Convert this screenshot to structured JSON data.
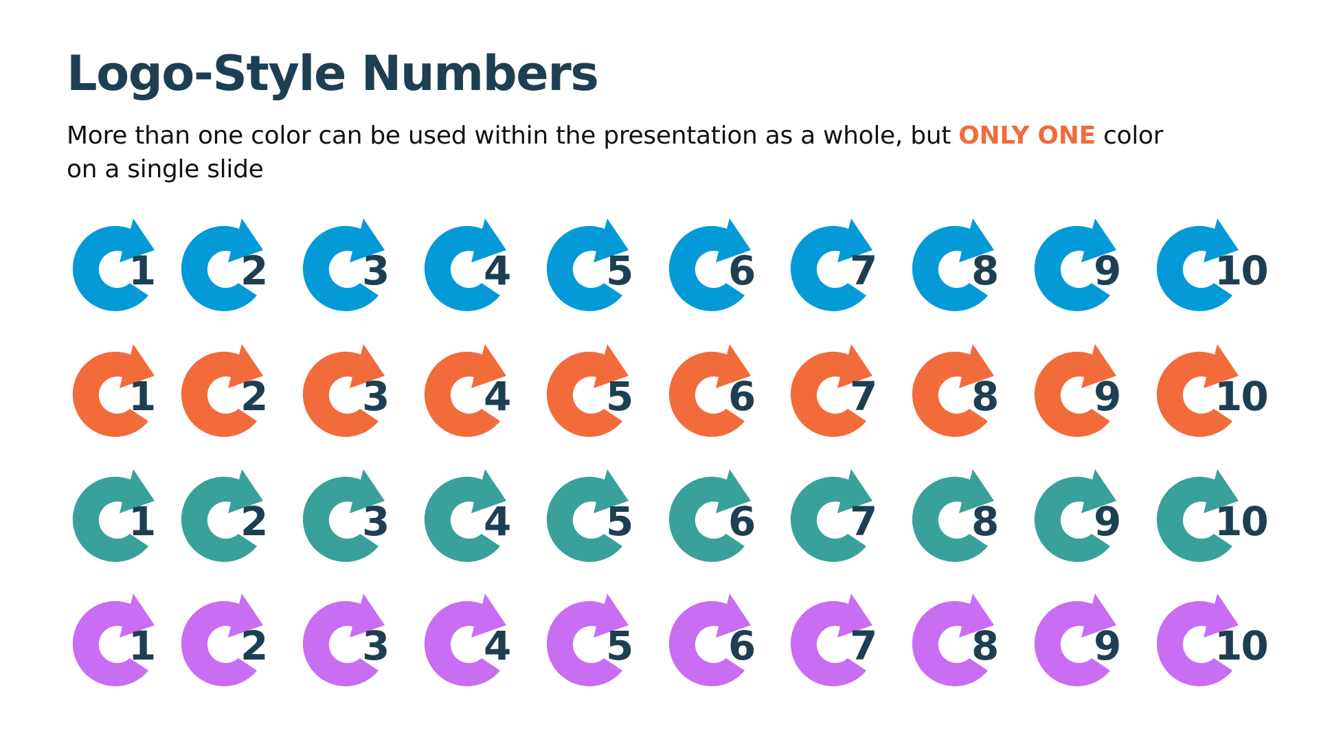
{
  "title": "Logo-Style Numbers",
  "subtitle": {
    "before": "More than one color can be used within the presentation as a whole, but ",
    "highlight": "ONLY ONE",
    "after": " color on a single slide",
    "highlight_color": "#f26b3a"
  },
  "number_color": "#1e3f52",
  "icon_name": "circular-arrow-icon",
  "rows": [
    {
      "name": "blue",
      "color": "#049ad7",
      "numbers": [
        "1",
        "2",
        "3",
        "4",
        "5",
        "6",
        "7",
        "8",
        "9",
        "10"
      ]
    },
    {
      "name": "orange",
      "color": "#f26b3a",
      "numbers": [
        "1",
        "2",
        "3",
        "4",
        "5",
        "6",
        "7",
        "8",
        "9",
        "10"
      ]
    },
    {
      "name": "teal",
      "color": "#39a199",
      "numbers": [
        "1",
        "2",
        "3",
        "4",
        "5",
        "6",
        "7",
        "8",
        "9",
        "10"
      ]
    },
    {
      "name": "purple",
      "color": "#c96df2",
      "numbers": [
        "1",
        "2",
        "3",
        "4",
        "5",
        "6",
        "7",
        "8",
        "9",
        "10"
      ]
    }
  ]
}
